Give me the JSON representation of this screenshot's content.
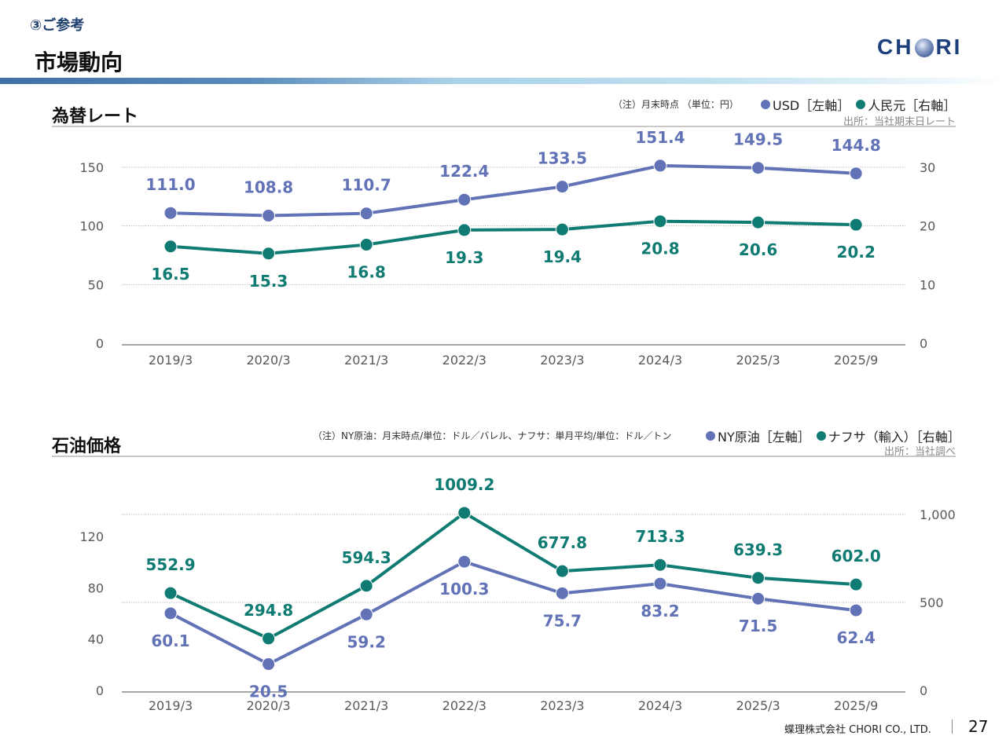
{
  "header": {
    "section_tag": "③ご参考",
    "title": "市場動向",
    "logo_text_left": "CH",
    "logo_text_right": "RI"
  },
  "colors": {
    "primary_series": "#6272b6",
    "secondary_series": "#0f7b72",
    "title_navy": "#1f3f6e"
  },
  "fx_section": {
    "heading": "為替レート",
    "note": "（注）月末時点 （単位：円）",
    "legend": [
      {
        "label": "USD［左軸］",
        "color": "#6272b6"
      },
      {
        "label": "人民元［右軸］",
        "color": "#0f7b72"
      }
    ],
    "source": "出所：当社期末日レート"
  },
  "oil_section": {
    "heading": "石油価格",
    "note": "（注）NY原油：月末時点/単位：ドル／バレル、ナフサ：単月平均/単位：ドル／トン",
    "legend": [
      {
        "label": "NY原油［左軸］",
        "color": "#6272b6"
      },
      {
        "label": "ナフサ（輸入）［右軸］",
        "color": "#0f7b72"
      }
    ],
    "source": "出所：当社調べ"
  },
  "chart_data": [
    {
      "type": "line",
      "title": "為替レート",
      "categories": [
        "2019/3",
        "2020/3",
        "2021/3",
        "2022/3",
        "2023/3",
        "2024/3",
        "2025/3",
        "2025/9"
      ],
      "series": [
        {
          "name": "USD［左軸］",
          "axis": "left",
          "color": "#6272b6",
          "values": [
            111.0,
            108.8,
            110.7,
            122.4,
            133.5,
            151.4,
            149.5,
            144.8
          ],
          "labels": [
            "111.0",
            "108.8",
            "110.7",
            "122.4",
            "133.5",
            "151.4",
            "149.5",
            "144.8"
          ],
          "label_position": "above"
        },
        {
          "name": "人民元［右軸］",
          "axis": "right",
          "color": "#0f7b72",
          "values": [
            16.5,
            15.3,
            16.8,
            19.3,
            19.4,
            20.8,
            20.6,
            20.2
          ],
          "labels": [
            "16.5",
            "15.3",
            "16.8",
            "19.3",
            "19.4",
            "20.8",
            "20.6",
            "20.2"
          ],
          "label_position": "below"
        }
      ],
      "y_left": {
        "range": [
          0,
          150
        ],
        "ticks": [
          0,
          50,
          100,
          150
        ],
        "tick_labels": [
          "0",
          "50",
          "100",
          "150"
        ]
      },
      "y_right": {
        "range": [
          0,
          30
        ],
        "ticks": [
          0,
          10,
          20,
          30
        ],
        "tick_labels": [
          "0",
          "10",
          "20",
          "30"
        ]
      },
      "grid": true,
      "legend_position": "top-right"
    },
    {
      "type": "line",
      "title": "石油価格",
      "categories": [
        "2019/3",
        "2020/3",
        "2021/3",
        "2022/3",
        "2023/3",
        "2024/3",
        "2025/3",
        "2025/9"
      ],
      "series": [
        {
          "name": "NY原油［左軸］",
          "axis": "left",
          "color": "#6272b6",
          "values": [
            60.1,
            20.5,
            59.2,
            100.3,
            75.7,
            83.2,
            71.5,
            62.4
          ],
          "labels": [
            "60.1",
            "20.5",
            "59.2",
            "100.3",
            "75.7",
            "83.2",
            "71.5",
            "62.4"
          ],
          "label_position": "below"
        },
        {
          "name": "ナフサ（輸入）［右軸］",
          "axis": "right",
          "color": "#0f7b72",
          "values": [
            552.9,
            294.8,
            594.3,
            1009.2,
            677.8,
            713.3,
            639.3,
            602.0
          ],
          "labels": [
            "552.9",
            "294.8",
            "594.3",
            "1009.2",
            "677.8",
            "713.3",
            "639.3",
            "602.0"
          ],
          "label_position": "above"
        }
      ],
      "y_left": {
        "range": [
          0,
          120
        ],
        "ticks": [
          0,
          40,
          80,
          120
        ],
        "tick_labels": [
          "0",
          "40",
          "80",
          "120"
        ]
      },
      "y_right": {
        "range": [
          0,
          1000
        ],
        "ticks": [
          0,
          500,
          1000
        ],
        "tick_labels": [
          "0",
          "500",
          "1,000"
        ]
      },
      "grid": true,
      "legend_position": "top-right"
    }
  ],
  "footer": {
    "company": "蝶理株式会社 CHORI CO., LTD.",
    "page_number": "27"
  }
}
